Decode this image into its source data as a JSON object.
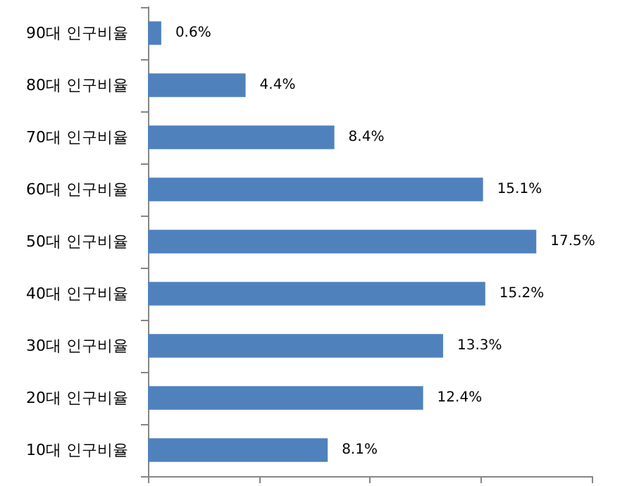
{
  "chart_data": {
    "type": "bar",
    "orientation": "horizontal",
    "categories": [
      "90대 인구비율",
      "80대 인구비율",
      "70대 인구비율",
      "60대 인구비율",
      "50대 인구비율",
      "40대 인구비율",
      "30대 인구비율",
      "20대 인구비율",
      "10대 인구비율"
    ],
    "values": [
      0.6,
      4.4,
      8.4,
      15.1,
      17.5,
      15.2,
      13.3,
      12.4,
      8.1
    ],
    "value_labels": [
      "0.6%",
      "4.4%",
      "8.4%",
      "15.1%",
      "17.5%",
      "15.2%",
      "13.3%",
      "12.4%",
      "8.1%"
    ],
    "color": "#4f81bd",
    "xlim": [
      0,
      20
    ],
    "xticks": [
      {
        "value": 0,
        "label": null
      },
      {
        "value": 5,
        "label": null
      },
      {
        "value": 10,
        "label": null
      },
      {
        "value": 15,
        "label": null
      },
      {
        "value": 20,
        "label": null
      }
    ],
    "tick_labels": "y"
  }
}
